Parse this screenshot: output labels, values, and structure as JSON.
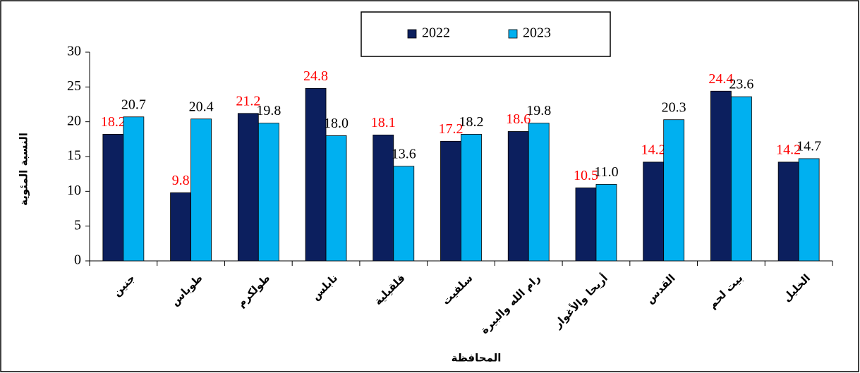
{
  "chart_data": {
    "type": "bar",
    "x_label": "المحافظة",
    "y_label": "النسبة المئوية",
    "categories": [
      "جنين",
      "طوباس",
      "طولكرم",
      "نابلس",
      "قلقيلية",
      "سلفيت",
      "رام الله والبيرة",
      "أريحا والأغوار",
      "القدس",
      "بيت لحم",
      "الخليل"
    ],
    "series": [
      {
        "name": "2022",
        "color": "#0c1f5e",
        "label_color": "#ff0000",
        "values": [
          18.2,
          9.8,
          21.2,
          24.8,
          18.1,
          17.2,
          18.6,
          10.5,
          14.2,
          24.4,
          14.2
        ]
      },
      {
        "name": "2023",
        "color": "#00b0f0",
        "label_color": "#000000",
        "values": [
          20.7,
          20.4,
          19.8,
          18.0,
          13.6,
          18.2,
          19.8,
          11.0,
          20.3,
          23.6,
          14.7
        ],
        "value_labels": [
          "20.7",
          "20.4",
          "19.8",
          "18.0",
          "13.6",
          "18.2",
          "19.8",
          "11.0",
          "20.3",
          "23.6",
          "14.7"
        ]
      }
    ],
    "ylim": [
      0,
      30
    ],
    "yticks": [
      0,
      5,
      10,
      15,
      20,
      25,
      30
    ],
    "grid": false,
    "legend": "top"
  }
}
